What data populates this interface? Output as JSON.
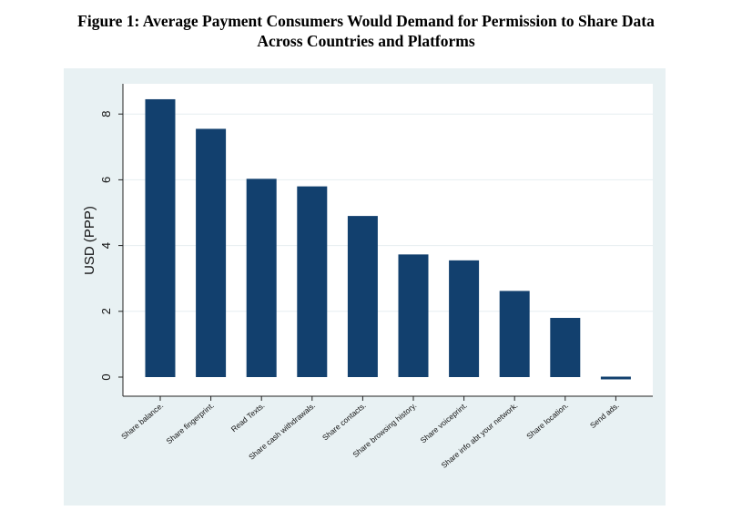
{
  "chart_data": {
    "type": "bar",
    "title_line1": "Figure 1: Average Payment Consumers Would Demand for Permission to Share Data",
    "title_line2": "Across Countries and Platforms",
    "ylabel": "USD (PPP)",
    "xlabel": "",
    "ylim": [
      -0.5,
      9
    ],
    "yticks": [
      0,
      2,
      4,
      6,
      8
    ],
    "categories": [
      "Share balance.",
      "Share fingerprint.",
      "Read Texts.",
      "Share cash withdrawals.",
      "Share contacts.",
      "Share browsing history.",
      "Share voiceprint.",
      "Share info abt your network.",
      "Share location.",
      "Send ads."
    ],
    "values": [
      8.45,
      7.55,
      6.03,
      5.8,
      4.9,
      3.73,
      3.55,
      2.62,
      1.8,
      -0.05
    ],
    "grid": true,
    "legend": "none",
    "colors": {
      "bar": "#12406e",
      "plot_background": "#ffffff",
      "outer_background": "#e8f1f3",
      "grid": "#e6eef1"
    }
  }
}
